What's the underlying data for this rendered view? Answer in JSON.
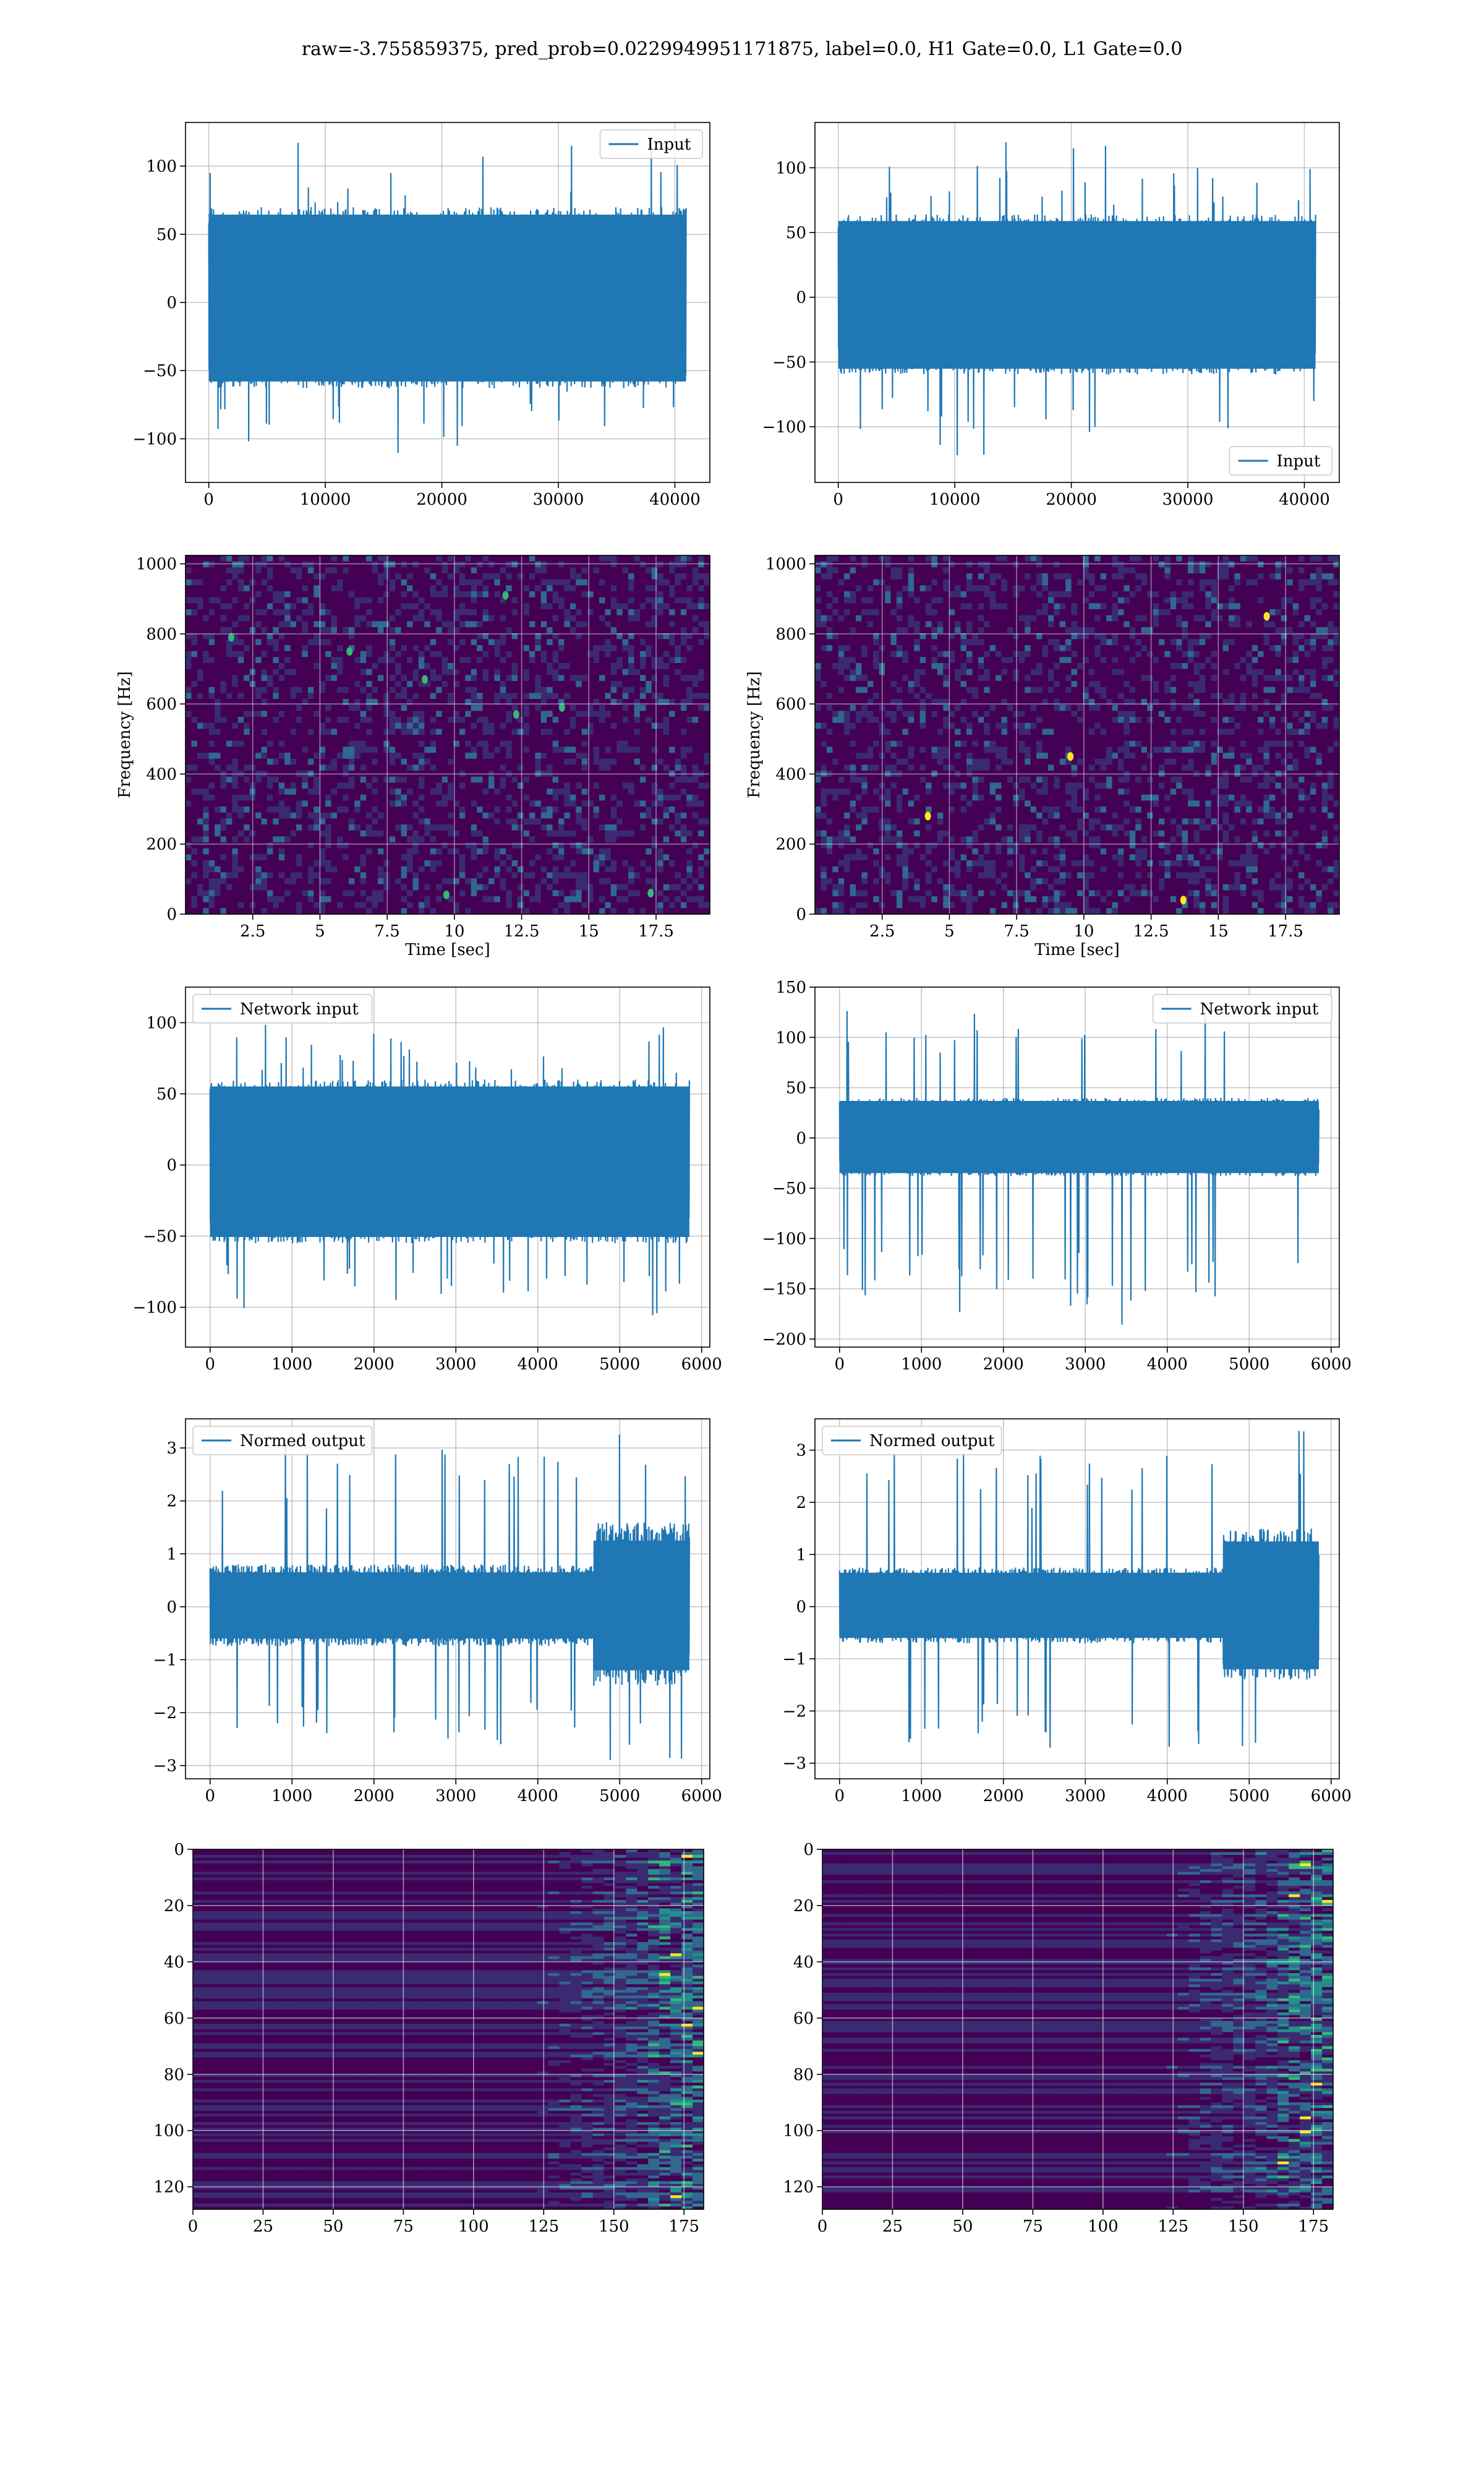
{
  "figure": {
    "title": "raw=-3.755859375, pred_prob=0.0229949951171875, label=0.0, H1 Gate=0.0, L1 Gate=0.0"
  },
  "colors": {
    "line": "#1f77b4",
    "grid": "#b0b0b0",
    "viridis_dark": "#440154",
    "viridis_purple": "#3b2a72",
    "viridis_blue": "#31688e",
    "viridis_teal": "#21918c",
    "viridis_green": "#35b779",
    "viridis_yellow": "#fde725"
  },
  "chart_data": [
    {
      "id": "input-h1",
      "type": "line",
      "series": [
        {
          "name": "Input",
          "x_range": [
            0,
            40960
          ],
          "amplitude_band": [
            -63,
            70
          ],
          "peaks_max": 125,
          "peaks_min": -118
        }
      ],
      "xlim": [
        -2000,
        43000
      ],
      "ylim": [
        -132,
        132
      ],
      "xticks": [
        0,
        10000,
        20000,
        30000,
        40000
      ],
      "yticks": [
        -100,
        -50,
        0,
        50,
        100
      ],
      "legend": "top-right",
      "grid": true,
      "xlabel": "",
      "ylabel": ""
    },
    {
      "id": "input-l1",
      "type": "line",
      "series": [
        {
          "name": "Input",
          "x_range": [
            0,
            40960
          ],
          "amplitude_band": [
            -60,
            64
          ],
          "peaks_max": 122,
          "peaks_min": -130
        }
      ],
      "xlim": [
        -2000,
        43000
      ],
      "ylim": [
        -143,
        135
      ],
      "xticks": [
        0,
        10000,
        20000,
        30000,
        40000
      ],
      "yticks": [
        -100,
        -50,
        0,
        50,
        100
      ],
      "legend": "bottom-right",
      "grid": true,
      "xlabel": "",
      "ylabel": ""
    },
    {
      "id": "spectrogram-h1",
      "type": "heatmap",
      "xlim": [
        0,
        19.5
      ],
      "ylim": [
        0,
        1024
      ],
      "xticks": [
        2.5,
        5.0,
        7.5,
        10.0,
        12.5,
        15.0,
        17.5
      ],
      "yticks": [
        0,
        200,
        400,
        600,
        800,
        1000
      ],
      "xlabel": "Time [sec]",
      "ylabel": "Frequency [Hz]",
      "bright_spots": [
        [
          1.7,
          790
        ],
        [
          8.9,
          670
        ],
        [
          12.3,
          570
        ],
        [
          14.0,
          590
        ],
        [
          17.3,
          60
        ],
        [
          9.7,
          55
        ],
        [
          6.1,
          750
        ],
        [
          11.9,
          910
        ]
      ]
    },
    {
      "id": "spectrogram-l1",
      "type": "heatmap",
      "xlim": [
        0,
        19.5
      ],
      "ylim": [
        0,
        1024
      ],
      "xticks": [
        2.5,
        5.0,
        7.5,
        10.0,
        12.5,
        15.0,
        17.5
      ],
      "yticks": [
        0,
        200,
        400,
        600,
        800,
        1000
      ],
      "xlabel": "Time [sec]",
      "ylabel": "Frequency [Hz]",
      "bright_spots": [
        [
          13.7,
          40
        ],
        [
          16.8,
          850
        ],
        [
          4.2,
          280
        ],
        [
          9.5,
          450
        ]
      ]
    },
    {
      "id": "network-input-h1",
      "type": "line",
      "series": [
        {
          "name": "Network input",
          "x_range": [
            0,
            5850
          ],
          "amplitude_band": [
            -55,
            60
          ],
          "peaks_max": 103,
          "peaks_min": -115
        }
      ],
      "xlim": [
        -300,
        6100
      ],
      "ylim": [
        -128,
        125
      ],
      "xticks": [
        0,
        1000,
        2000,
        3000,
        4000,
        5000,
        6000
      ],
      "yticks": [
        -100,
        -50,
        0,
        50,
        100
      ],
      "legend": "top-left",
      "grid": true,
      "xlabel": "",
      "ylabel": ""
    },
    {
      "id": "network-input-l1",
      "type": "line",
      "series": [
        {
          "name": "Network input",
          "x_range": [
            0,
            5850
          ],
          "amplitude_band": [
            -38,
            40
          ],
          "peaks_max": 135,
          "peaks_min": -195
        }
      ],
      "xlim": [
        -300,
        6100
      ],
      "ylim": [
        -208,
        150
      ],
      "xticks": [
        0,
        1000,
        2000,
        3000,
        4000,
        5000,
        6000
      ],
      "yticks": [
        -200,
        -150,
        -100,
        -50,
        0,
        50,
        100,
        150
      ],
      "legend": "top-right",
      "grid": true,
      "xlabel": "",
      "ylabel": ""
    },
    {
      "id": "normed-output-h1",
      "type": "line",
      "series": [
        {
          "name": "Normed output",
          "x_range": [
            0,
            5850
          ],
          "amplitude_band": [
            -0.75,
            0.8
          ],
          "peaks_max": 3.4,
          "peaks_min": -2.9
        }
      ],
      "xlim": [
        -300,
        6100
      ],
      "ylim": [
        -3.25,
        3.55
      ],
      "xticks": [
        0,
        1000,
        2000,
        3000,
        4000,
        5000,
        6000
      ],
      "yticks": [
        -3,
        -2,
        -1,
        0,
        1,
        2,
        3
      ],
      "legend": "top-left",
      "grid": true,
      "xlabel": "",
      "ylabel": ""
    },
    {
      "id": "normed-output-l1",
      "type": "line",
      "series": [
        {
          "name": "Normed output",
          "x_range": [
            0,
            5850
          ],
          "amplitude_band": [
            -0.7,
            0.75
          ],
          "peaks_max": 3.5,
          "peaks_min": -3.0
        }
      ],
      "xlim": [
        -300,
        6100
      ],
      "ylim": [
        -3.3,
        3.6
      ],
      "xticks": [
        0,
        1000,
        2000,
        3000,
        4000,
        5000,
        6000
      ],
      "yticks": [
        -3,
        -2,
        -1,
        0,
        1,
        2,
        3
      ],
      "legend": "top-left",
      "grid": true,
      "xlabel": "",
      "ylabel": ""
    },
    {
      "id": "feature-map-h1",
      "type": "heatmap",
      "xlim": [
        0,
        182
      ],
      "ylim": [
        128,
        0
      ],
      "xticks": [
        0,
        25,
        50,
        75,
        100,
        125,
        150,
        175
      ],
      "yticks": [
        0,
        20,
        40,
        60,
        80,
        100,
        120
      ],
      "xlabel": "",
      "ylabel": ""
    },
    {
      "id": "feature-map-l1",
      "type": "heatmap",
      "xlim": [
        0,
        182
      ],
      "ylim": [
        128,
        0
      ],
      "xticks": [
        0,
        25,
        50,
        75,
        100,
        125,
        150,
        175
      ],
      "yticks": [
        0,
        20,
        40,
        60,
        80,
        100,
        120
      ],
      "xlabel": "",
      "ylabel": ""
    }
  ]
}
